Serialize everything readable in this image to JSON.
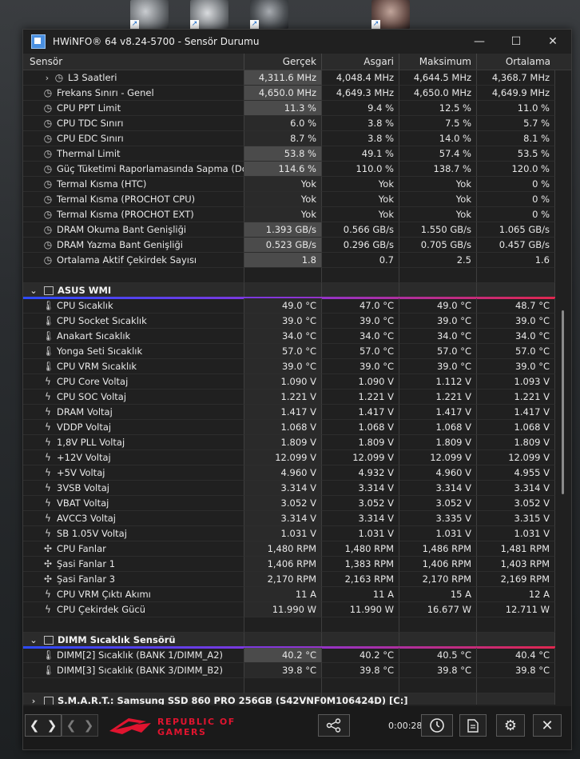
{
  "window": {
    "title": "HWiNFO® 64 v8.24-5700 - Sensör Durumu",
    "minimize": "—",
    "maximize": "☐",
    "close": "✕"
  },
  "columns": [
    "Sensör",
    "Gerçek",
    "Asgari",
    "Maksimum",
    "Ortalama"
  ],
  "rows": [
    {
      "type": "sensor",
      "icon": "clock",
      "expand": true,
      "name": "L3 Saatleri",
      "v": [
        "4,311.6 MHz",
        "4,048.4 MHz",
        "4,644.5 MHz",
        "4,368.7 MHz"
      ],
      "hl": true
    },
    {
      "type": "sensor",
      "icon": "clock",
      "name": "Frekans Sınırı - Genel",
      "v": [
        "4,650.0 MHz",
        "4,649.3 MHz",
        "4,650.0 MHz",
        "4,649.9 MHz"
      ],
      "hl": true
    },
    {
      "type": "sensor",
      "icon": "clock",
      "name": "CPU PPT Limit",
      "v": [
        "11.3 %",
        "9.4 %",
        "12.5 %",
        "11.0 %"
      ],
      "hl": true
    },
    {
      "type": "sensor",
      "icon": "clock",
      "name": "CPU TDC Sınırı",
      "v": [
        "6.0 %",
        "3.8 %",
        "7.5 %",
        "5.7 %"
      ]
    },
    {
      "type": "sensor",
      "icon": "clock",
      "name": "CPU EDC Sınırı",
      "v": [
        "8.7 %",
        "3.8 %",
        "14.0 %",
        "8.1 %"
      ]
    },
    {
      "type": "sensor",
      "icon": "clock",
      "name": "Thermal Limit",
      "v": [
        "53.8 %",
        "49.1 %",
        "57.4 %",
        "53.5 %"
      ],
      "hl": true
    },
    {
      "type": "sensor",
      "icon": "clock",
      "name": "Güç Tüketimi Raporlamasında Sapma (Do...",
      "v": [
        "114.6 %",
        "110.0 %",
        "138.7 %",
        "120.0 %"
      ],
      "hl": true
    },
    {
      "type": "sensor",
      "icon": "clock",
      "name": "Termal Kısma (HTC)",
      "v": [
        "Yok",
        "Yok",
        "Yok",
        "0 %"
      ]
    },
    {
      "type": "sensor",
      "icon": "clock",
      "name": "Termal Kısma (PROCHOT CPU)",
      "v": [
        "Yok",
        "Yok",
        "Yok",
        "0 %"
      ]
    },
    {
      "type": "sensor",
      "icon": "clock",
      "name": "Termal Kısma (PROCHOT EXT)",
      "v": [
        "Yok",
        "Yok",
        "Yok",
        "0 %"
      ]
    },
    {
      "type": "sensor",
      "icon": "clock",
      "name": "DRAM Okuma Bant Genişliği",
      "v": [
        "1.393 GB/s",
        "0.566 GB/s",
        "1.550 GB/s",
        "1.065 GB/s"
      ],
      "hl": true
    },
    {
      "type": "sensor",
      "icon": "clock",
      "name": "DRAM Yazma Bant Genişliği",
      "v": [
        "0.523 GB/s",
        "0.296 GB/s",
        "0.705 GB/s",
        "0.457 GB/s"
      ],
      "hl": true
    },
    {
      "type": "sensor",
      "icon": "clock",
      "name": "Ortalama Aktif Çekirdek Sayısı",
      "v": [
        "1.8",
        "0.7",
        "2.5",
        "1.6"
      ],
      "hl": true
    },
    {
      "type": "blank"
    },
    {
      "type": "group",
      "name": "ASUS WMI",
      "expanded": true
    },
    {
      "type": "sensor",
      "icon": "thermo",
      "name": "CPU Sıcaklık",
      "v": [
        "49.0 °C",
        "47.0 °C",
        "49.0 °C",
        "48.7 °C"
      ]
    },
    {
      "type": "sensor",
      "icon": "thermo",
      "name": "CPU Socket Sıcaklık",
      "v": [
        "39.0 °C",
        "39.0 °C",
        "39.0 °C",
        "39.0 °C"
      ]
    },
    {
      "type": "sensor",
      "icon": "thermo",
      "name": "Anakart Sıcaklık",
      "v": [
        "34.0 °C",
        "34.0 °C",
        "34.0 °C",
        "34.0 °C"
      ]
    },
    {
      "type": "sensor",
      "icon": "thermo",
      "name": "Yonga Seti Sıcaklık",
      "v": [
        "57.0 °C",
        "57.0 °C",
        "57.0 °C",
        "57.0 °C"
      ]
    },
    {
      "type": "sensor",
      "icon": "thermo",
      "name": "CPU VRM Sıcaklık",
      "v": [
        "39.0 °C",
        "39.0 °C",
        "39.0 °C",
        "39.0 °C"
      ]
    },
    {
      "type": "sensor",
      "icon": "bolt",
      "name": "CPU Core Voltaj",
      "v": [
        "1.090 V",
        "1.090 V",
        "1.112 V",
        "1.093 V"
      ]
    },
    {
      "type": "sensor",
      "icon": "bolt",
      "name": "CPU SOC Voltaj",
      "v": [
        "1.221 V",
        "1.221 V",
        "1.221 V",
        "1.221 V"
      ]
    },
    {
      "type": "sensor",
      "icon": "bolt",
      "name": "DRAM Voltaj",
      "v": [
        "1.417 V",
        "1.417 V",
        "1.417 V",
        "1.417 V"
      ]
    },
    {
      "type": "sensor",
      "icon": "bolt",
      "name": "VDDP Voltaj",
      "v": [
        "1.068 V",
        "1.068 V",
        "1.068 V",
        "1.068 V"
      ]
    },
    {
      "type": "sensor",
      "icon": "bolt",
      "name": "1,8V PLL Voltaj",
      "v": [
        "1.809 V",
        "1.809 V",
        "1.809 V",
        "1.809 V"
      ]
    },
    {
      "type": "sensor",
      "icon": "bolt",
      "name": "+12V Voltaj",
      "v": [
        "12.099 V",
        "12.099 V",
        "12.099 V",
        "12.099 V"
      ]
    },
    {
      "type": "sensor",
      "icon": "bolt",
      "name": "+5V Voltaj",
      "v": [
        "4.960 V",
        "4.932 V",
        "4.960 V",
        "4.955 V"
      ]
    },
    {
      "type": "sensor",
      "icon": "bolt",
      "name": "3VSB Voltaj",
      "v": [
        "3.314 V",
        "3.314 V",
        "3.314 V",
        "3.314 V"
      ]
    },
    {
      "type": "sensor",
      "icon": "bolt",
      "name": "VBAT Voltaj",
      "v": [
        "3.052 V",
        "3.052 V",
        "3.052 V",
        "3.052 V"
      ]
    },
    {
      "type": "sensor",
      "icon": "bolt",
      "name": "AVCC3 Voltaj",
      "v": [
        "3.314 V",
        "3.314 V",
        "3.335 V",
        "3.315 V"
      ]
    },
    {
      "type": "sensor",
      "icon": "bolt",
      "name": "SB 1.05V Voltaj",
      "v": [
        "1.031 V",
        "1.031 V",
        "1.031 V",
        "1.031 V"
      ]
    },
    {
      "type": "sensor",
      "icon": "fan",
      "name": "CPU Fanlar",
      "v": [
        "1,480 RPM",
        "1,480 RPM",
        "1,486 RPM",
        "1,481 RPM"
      ]
    },
    {
      "type": "sensor",
      "icon": "fan",
      "name": "Şasi Fanlar 1",
      "v": [
        "1,406 RPM",
        "1,383 RPM",
        "1,406 RPM",
        "1,403 RPM"
      ]
    },
    {
      "type": "sensor",
      "icon": "fan",
      "name": "Şasi Fanlar 3",
      "v": [
        "2,170 RPM",
        "2,163 RPM",
        "2,170 RPM",
        "2,169 RPM"
      ]
    },
    {
      "type": "sensor",
      "icon": "bolt",
      "name": "CPU VRM Çıktı Akımı",
      "v": [
        "11 A",
        "11 A",
        "15 A",
        "12 A"
      ]
    },
    {
      "type": "sensor",
      "icon": "bolt",
      "name": "CPU Çekirdek Gücü",
      "v": [
        "11.990 W",
        "11.990 W",
        "16.677 W",
        "12.711 W"
      ]
    },
    {
      "type": "blank"
    },
    {
      "type": "group",
      "name": "DIMM Sıcaklık Sensörü",
      "expanded": true
    },
    {
      "type": "sensor",
      "icon": "thermo",
      "name": "DIMM[2] Sıcaklık (BANK 1/DIMM_A2)",
      "v": [
        "40.2 °C",
        "40.2 °C",
        "40.5 °C",
        "40.4 °C"
      ],
      "hl": true
    },
    {
      "type": "sensor",
      "icon": "thermo",
      "name": "DIMM[3] Sıcaklık (BANK 3/DIMM_B2)",
      "v": [
        "39.8 °C",
        "39.8 °C",
        "39.8 °C",
        "39.8 °C"
      ]
    },
    {
      "type": "blank"
    },
    {
      "type": "group",
      "name": "S.M.A.R.T.: Samsung SSD 860 PRO 256GB (S42VNF0M106424D) [C:]",
      "expanded": false
    }
  ],
  "footer": {
    "timer": "0:00:28",
    "logo_line1": "REPUBLIC OF",
    "logo_line2": "GAMERS"
  },
  "colors": {
    "accent_line_start": "#2d4bff",
    "accent_line_end": "#e0274f",
    "rog_red": "#e0142f"
  }
}
